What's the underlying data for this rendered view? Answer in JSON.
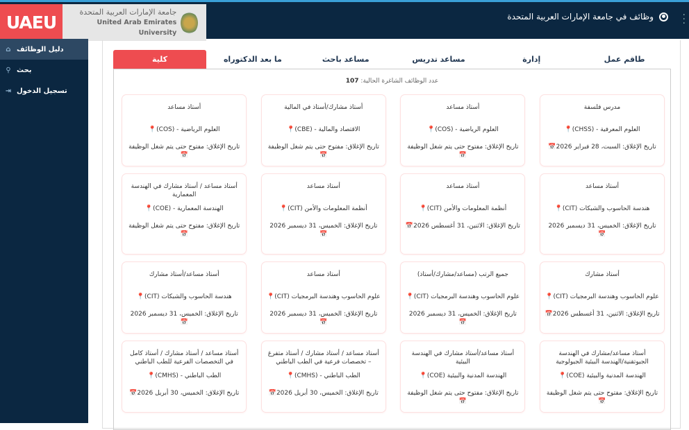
{
  "header": {
    "logo_text": "UAEU",
    "university_ar": "جامعة الإمارات العربية المتحدة",
    "university_en": "United Arab Emirates University",
    "site_title": "وظائف في جامعة الإمارات العربية المتحدة",
    "user_icon": "user-circle-icon",
    "brand_color": "#ee4c50",
    "nav_color": "#0b2741"
  },
  "sidebar": {
    "items": [
      {
        "label": "دليل الوظائف",
        "icon": "home-icon",
        "active": true
      },
      {
        "label": "بحث",
        "icon": "search-icon"
      },
      {
        "label": "تسجيل الدخول",
        "icon": "login-icon"
      }
    ]
  },
  "tabs": [
    {
      "label": "طاقم عمل"
    },
    {
      "label": "إدارة"
    },
    {
      "label": "مساعد تدريس"
    },
    {
      "label": "مساعد باحث"
    },
    {
      "label": "ما بعد الدكتوراه"
    },
    {
      "label": "كلية",
      "active": true
    }
  ],
  "count": {
    "label": "عدد الوظائف الشاغرة الحالية:",
    "value": "107"
  },
  "jobs": [
    {
      "title": "مدرس فلسفة",
      "dept": "العلوم المعرفية - (CHSS)",
      "closing": "تاريخ الإغلاق: السبت، 28 فبراير 2026"
    },
    {
      "title": "أستاذ مساعد",
      "dept": "العلوم الرياضية - (COS)",
      "closing": "تاريخ الإغلاق: مفتوح حتى يتم شغل الوظيفة"
    },
    {
      "title": "أستاذ مشارك/أستاذ في المالية",
      "dept": "الاقتصاد والمالية - (CBE)",
      "closing": "تاريخ الإغلاق: مفتوح حتى يتم شغل الوظيفة"
    },
    {
      "title": "أستاذ مساعد",
      "dept": "العلوم الرياضية - (COS)",
      "closing": "تاريخ الإغلاق: مفتوح حتى يتم شغل الوظيفة"
    },
    {
      "title": "أستاذ مساعد",
      "dept": "هندسة الحاسوب والشبكات (CIT)",
      "closing": "تاريخ الإغلاق: الخميس، 31 ديسمبر 2026"
    },
    {
      "title": "أستاذ مساعد",
      "dept": "أنظمة المعلومات والأمن (CIT)",
      "closing": "تاريخ الإغلاق: الاثنين، 31 أغسطس 2026"
    },
    {
      "title": "أستاذ مساعد",
      "dept": "أنظمة المعلومات والأمن (CIT)",
      "closing": "تاريخ الإغلاق: الخميس، 31 ديسمبر 2026"
    },
    {
      "title": "أستاذ مساعد / أستاذ مشارك في الهندسة المعمارية",
      "dept": "الهندسة المعمارية - (COE)",
      "closing": "تاريخ الإغلاق: مفتوح حتى يتم شغل الوظيفة"
    },
    {
      "title": "أستاذ مشارك",
      "dept": "علوم الحاسوب وهندسة البرمجيات (CIT)",
      "closing": "تاريخ الإغلاق: الاثنين، 31 أغسطس 2026"
    },
    {
      "title": "جميع الرتب (مساعد/مشارك/أستاذ)",
      "dept": "علوم الحاسوب وهندسة البرمجيات (CIT)",
      "closing": "تاريخ الإغلاق: الخميس، 31 ديسمبر 2026"
    },
    {
      "title": "أستاذ مساعد",
      "dept": "علوم الحاسوب وهندسة البرمجيات (CIT)",
      "closing": "تاريخ الإغلاق: الخميس، 31 ديسمبر 2026"
    },
    {
      "title": "أستاذ مساعد/أستاذ مشارك",
      "dept": "هندسة الحاسوب والشبكات (CIT)",
      "closing": "تاريخ الإغلاق: الخميس، 31 ديسمبر 2026"
    },
    {
      "title": "أستاذ مساعد/مشارك في الهندسة الجيوتقنية/الهندسة البيئية الجيولوجية",
      "dept": "الهندسة المدنية والبيئية (COE)",
      "closing": "تاريخ الإغلاق: مفتوح حتى يتم شغل الوظيفة"
    },
    {
      "title": "أستاذ مساعد/أستاذ مشارك في الهندسة البيئية",
      "dept": "الهندسة المدنية والبيئية (COE)",
      "closing": "تاريخ الإغلاق: مفتوح حتى يتم شغل الوظيفة"
    },
    {
      "title": "أستاذ مساعد / أستاذ مشارك / أستاذ متفرغ – تخصصات فرعية في الطب الباطني",
      "dept": "الطب الباطني - (CMHS)",
      "closing": "تاريخ الإغلاق: الخميس، 30 أبريل 2026"
    },
    {
      "title": "أستاذ مساعد / أستاذ مشارك / أستاذ كامل في التخصصات الفرعية للطب الباطني",
      "dept": "الطب الباطني - (CMHS)",
      "closing": "تاريخ الإغلاق: الخميس، 30 أبريل 2026"
    }
  ]
}
